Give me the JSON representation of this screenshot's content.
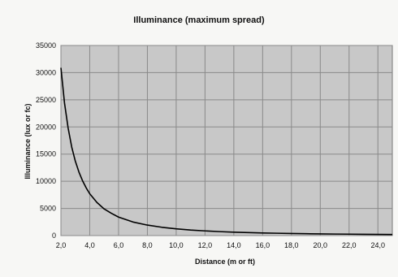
{
  "chart_data": {
    "type": "line",
    "title": "Illuminance (maximum spread)",
    "xlabel": "Distance (m or ft)",
    "ylabel": "Illuminance (lux or fc)",
    "xlim": [
      2.0,
      25.0
    ],
    "ylim": [
      0,
      35000
    ],
    "x_ticks": [
      "2,0",
      "4,0",
      "6,0",
      "8,0",
      "10,0",
      "12,0",
      "14,0",
      "16,0",
      "18,0",
      "20,0",
      "22,0",
      "24,0"
    ],
    "x_tick_values": [
      2,
      4,
      6,
      8,
      10,
      12,
      14,
      16,
      18,
      20,
      22,
      24
    ],
    "y_ticks": [
      "0",
      "5000",
      "10000",
      "15000",
      "20000",
      "25000",
      "30000",
      "35000"
    ],
    "y_tick_values": [
      0,
      5000,
      10000,
      15000,
      20000,
      25000,
      30000,
      35000
    ],
    "grid": true,
    "plot_background": "#c8c8c8",
    "grid_color": "#8a8a8a",
    "line_color": "#000000",
    "series": [
      {
        "x": [
          2,
          2.25,
          2.5,
          2.75,
          3,
          3.25,
          3.5,
          3.75,
          4,
          4.5,
          5,
          5.5,
          6,
          7,
          8,
          9,
          10,
          11,
          12,
          13,
          14,
          15,
          16,
          17,
          18,
          19,
          20,
          21,
          22,
          23,
          24,
          25
        ],
        "values": [
          30900,
          24400,
          19800,
          16300,
          13700,
          11700,
          10100,
          8800,
          7700,
          6100,
          4900,
          4100,
          3400,
          2500,
          1930,
          1530,
          1240,
          1020,
          860,
          730,
          630,
          550,
          480,
          430,
          380,
          340,
          310,
          280,
          260,
          230,
          210,
          200
        ]
      }
    ]
  }
}
